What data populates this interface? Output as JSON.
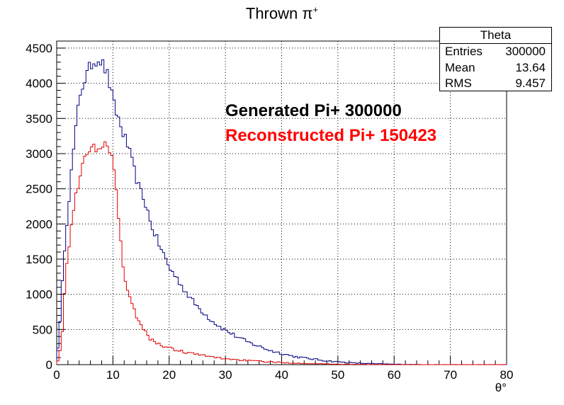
{
  "chart_data": {
    "type": "histogram",
    "title": "Thrown π",
    "title_superscript": "+",
    "xlabel": "θ°",
    "ylabel": "",
    "xlim": [
      0,
      80
    ],
    "ylim": [
      0,
      4600
    ],
    "x_ticks": [
      0,
      10,
      20,
      30,
      40,
      50,
      60,
      70,
      80
    ],
    "y_ticks": [
      0,
      500,
      1000,
      1500,
      2000,
      2500,
      3000,
      3500,
      4000,
      4500
    ],
    "grid": true,
    "bin_width": 0.4,
    "series": [
      {
        "color": "#000080",
        "x": [
          0,
          0.5,
          1,
          1.5,
          2,
          2.5,
          3,
          3.5,
          4,
          4.5,
          5,
          5.5,
          6,
          6.5,
          7,
          7.5,
          8,
          8.5,
          9,
          9.5,
          10,
          10.5,
          11,
          11.5,
          12,
          12.5,
          13,
          13.5,
          14,
          14.5,
          15,
          15.5,
          16,
          16.5,
          17,
          17.5,
          18,
          18.5,
          19,
          19.5,
          20,
          21,
          22,
          23,
          24,
          25,
          26,
          27,
          28,
          29,
          30,
          32,
          34,
          36,
          38,
          40,
          42,
          44,
          46,
          48,
          50,
          52,
          54,
          56,
          58,
          60,
          62,
          64,
          66,
          68,
          70,
          75,
          80
        ],
        "values": [
          120,
          450,
          1150,
          1800,
          2200,
          2650,
          3050,
          3400,
          3800,
          3950,
          4050,
          4150,
          4250,
          4300,
          4330,
          4350,
          4300,
          4220,
          4120,
          3950,
          3750,
          3600,
          3500,
          3350,
          3250,
          3150,
          3000,
          2850,
          2700,
          2550,
          2450,
          2350,
          2250,
          2050,
          1950,
          1850,
          1750,
          1650,
          1570,
          1480,
          1380,
          1270,
          1150,
          1030,
          920,
          830,
          750,
          670,
          600,
          540,
          490,
          400,
          320,
          260,
          200,
          160,
          120,
          95,
          75,
          55,
          40,
          28,
          20,
          14,
          10,
          6,
          4,
          2,
          1,
          0,
          0,
          0,
          0
        ]
      },
      {
        "color": "#e00000",
        "x": [
          0,
          0.5,
          1,
          1.5,
          2,
          2.5,
          3,
          3.5,
          4,
          4.5,
          5,
          5.5,
          6,
          6.5,
          7,
          7.5,
          8,
          8.5,
          9,
          9.5,
          10,
          10.5,
          11,
          11.5,
          12,
          12.5,
          13,
          13.5,
          14,
          14.5,
          15,
          15.5,
          16,
          16.5,
          17,
          17.5,
          18,
          18.5,
          19,
          19.5,
          20,
          21,
          22,
          23,
          24,
          25,
          26,
          27,
          28,
          29,
          30,
          32,
          34,
          36,
          38,
          40,
          42,
          44,
          46,
          48,
          50,
          52,
          54,
          56,
          58,
          60,
          62,
          64,
          66,
          68,
          70,
          75,
          80
        ],
        "values": [
          0,
          150,
          500,
          1150,
          1550,
          1950,
          2250,
          2450,
          2650,
          2800,
          2900,
          2980,
          3050,
          3080,
          3100,
          3120,
          3140,
          3120,
          3100,
          3050,
          2950,
          2550,
          2050,
          1650,
          1300,
          1080,
          930,
          820,
          730,
          640,
          560,
          490,
          430,
          380,
          350,
          320,
          300,
          280,
          265,
          250,
          235,
          215,
          195,
          175,
          160,
          145,
          130,
          118,
          105,
          95,
          85,
          70,
          58,
          47,
          38,
          30,
          24,
          18,
          14,
          10,
          7,
          5,
          3,
          2,
          1,
          0,
          0,
          0,
          0,
          0,
          0,
          0,
          0
        ]
      }
    ]
  },
  "stats_box": {
    "title": "Theta",
    "rows": [
      {
        "label": "Entries",
        "value": "300000"
      },
      {
        "label": "Mean",
        "value": "13.64"
      },
      {
        "label": "RMS",
        "value": "9.457"
      }
    ]
  },
  "annotations": {
    "generated": "Generated Pi+ 300000",
    "reconstructed": "Reconstructed Pi+ 150423"
  }
}
